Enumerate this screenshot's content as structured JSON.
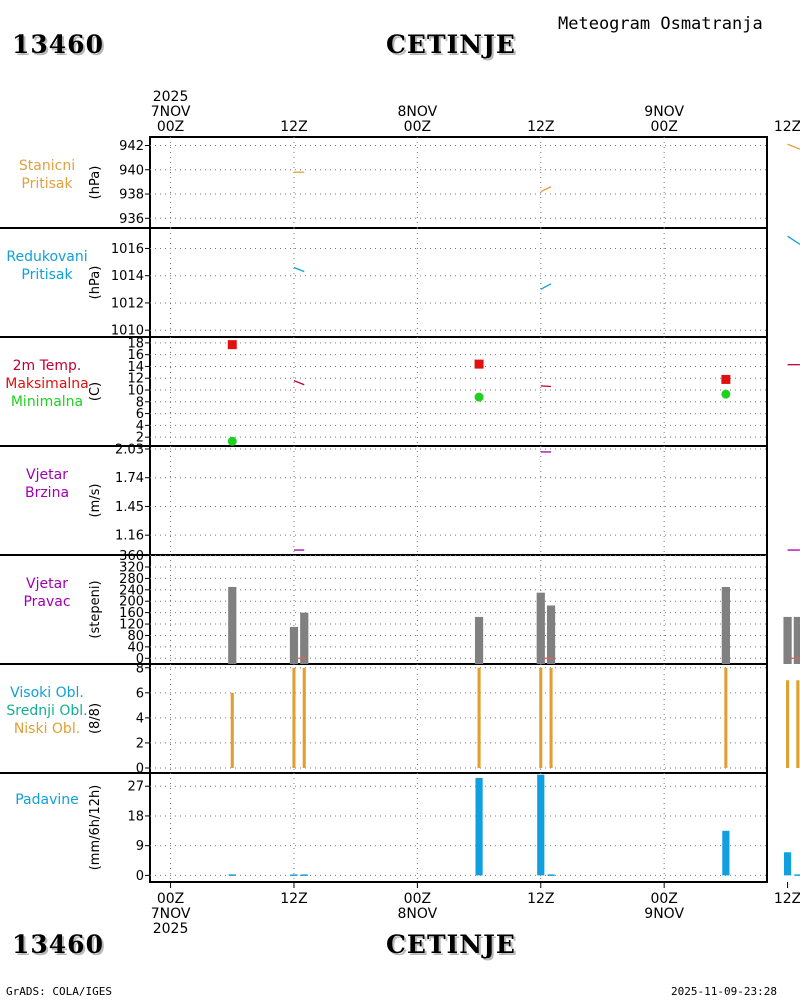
{
  "header": {
    "station_id": "13460",
    "station_name": "CETINJE",
    "product_title": "Meteogram Osmatranja"
  },
  "footer": {
    "station_id": "13460",
    "station_name": "CETINJE",
    "credit": "GrADS: COLA/IGES",
    "timestamp": "2025-11-09-23:28"
  },
  "colors": {
    "orange": "#e0a040",
    "cyan": "#10a0d8",
    "crimson": "#c00030",
    "red": "#e01010",
    "green": "#20d020",
    "purple": "#a000b0",
    "gray": "#808080",
    "cloud_bar": "#e0a030",
    "precip": "#10a0e0"
  },
  "chart_data": {
    "type": "meteogram",
    "time_axis": {
      "unit": "hours since 2025-11-07 00Z",
      "range": [
        -2,
        58
      ],
      "top_year": "2025",
      "top_ticks": [
        {
          "t": 0,
          "lines": [
            "2025",
            "7NOV",
            "00Z"
          ]
        },
        {
          "t": 12,
          "lines": [
            "12Z"
          ]
        },
        {
          "t": 24,
          "lines": [
            "8NOV",
            "00Z"
          ]
        },
        {
          "t": 36,
          "lines": [
            "12Z"
          ]
        },
        {
          "t": 48,
          "lines": [
            "9NOV",
            "00Z"
          ]
        },
        {
          "t": 60,
          "lines": [
            "12Z"
          ]
        }
      ],
      "bottom_ticks": [
        {
          "t": 0,
          "lines": [
            "00Z",
            "7NOV",
            "2025"
          ]
        },
        {
          "t": 12,
          "lines": [
            "12Z"
          ]
        },
        {
          "t": 24,
          "lines": [
            "00Z",
            "8NOV"
          ]
        },
        {
          "t": 36,
          "lines": [
            "12Z"
          ]
        },
        {
          "t": 48,
          "lines": [
            "00Z",
            "9NOV"
          ]
        },
        {
          "t": 60,
          "lines": [
            "12Z"
          ]
        }
      ]
    },
    "panels": [
      {
        "id": "station-pressure",
        "labels": [
          {
            "text": "Stanicni",
            "color": "#e0a040"
          },
          {
            "text": "Pritisak",
            "color": "#e0a040"
          }
        ],
        "unit": "(hPa)",
        "ylim": [
          935.2,
          942.7
        ],
        "yticks": [
          936,
          938,
          940,
          942
        ],
        "ytick_labels": [
          "936",
          "938",
          "940",
          "942"
        ],
        "series": [
          {
            "kind": "segments",
            "color": "#e0a040",
            "segments": [
              [
                [
                  12.0,
                  939.8
                ],
                [
                  13.0,
                  939.8
                ]
              ],
              [
                [
                  36.0,
                  938.2
                ],
                [
                  37.0,
                  938.6
                ]
              ],
              [
                [
                  60.0,
                  942.1
                ],
                [
                  61.2,
                  941.7
                ]
              ]
            ]
          }
        ]
      },
      {
        "id": "reduced-pressure",
        "labels": [
          {
            "text": "Redukovani",
            "color": "#10a0d8"
          },
          {
            "text": "Pritisak",
            "color": "#10a0d8"
          }
        ],
        "unit": "(hPa)",
        "ylim": [
          1009.5,
          1017.5
        ],
        "yticks": [
          1010,
          1012,
          1014,
          1016
        ],
        "ytick_labels": [
          "1010",
          "1012",
          "1014",
          "1016"
        ],
        "series": [
          {
            "kind": "segments",
            "color": "#10a0d8",
            "segments": [
              [
                [
                  12.0,
                  1014.6
                ],
                [
                  13.0,
                  1014.3
                ]
              ],
              [
                [
                  36.0,
                  1013.0
                ],
                [
                  37.0,
                  1013.4
                ]
              ],
              [
                [
                  60.0,
                  1016.9
                ],
                [
                  61.2,
                  1016.3
                ]
              ]
            ]
          }
        ]
      },
      {
        "id": "temperature",
        "labels": [
          {
            "text": "2m Temp.",
            "color": "#c00030"
          },
          {
            "text": "Maksimalna",
            "color": "#e01010"
          },
          {
            "text": "Minimalna",
            "color": "#20d020"
          }
        ],
        "unit": "(C)",
        "ylim": [
          0.5,
          19
        ],
        "yticks": [
          2,
          4,
          6,
          8,
          10,
          12,
          14,
          16,
          18
        ],
        "ytick_labels": [
          "2",
          "4",
          "6",
          "8",
          "10",
          "12",
          "14",
          "16",
          "18"
        ],
        "series": [
          {
            "kind": "segments",
            "color": "#c00030",
            "segments": [
              [
                [
                  12.0,
                  11.6
                ],
                [
                  13.0,
                  10.9
                ]
              ],
              [
                [
                  36.0,
                  10.7
                ],
                [
                  37.0,
                  10.6
                ]
              ],
              [
                [
                  60.0,
                  14.3
                ],
                [
                  61.2,
                  14.3
                ]
              ]
            ]
          },
          {
            "kind": "squares",
            "name": "Maksimalna",
            "color": "#e01010",
            "points": [
              [
                6,
                17.7
              ],
              [
                30,
                14.4
              ],
              [
                54,
                11.8
              ]
            ]
          },
          {
            "kind": "circles",
            "name": "Minimalna",
            "color": "#20d020",
            "points": [
              [
                6,
                1.3
              ],
              [
                30,
                8.8
              ],
              [
                54,
                9.3
              ]
            ]
          }
        ]
      },
      {
        "id": "wind-speed",
        "labels": [
          {
            "text": "Vjetar",
            "color": "#a000b0"
          },
          {
            "text": "Brzina",
            "color": "#a000b0"
          }
        ],
        "unit": "(m/s)",
        "ylim": [
          0.96,
          2.06
        ],
        "yticks": [
          1.16,
          1.45,
          1.74,
          2.03
        ],
        "ytick_labels": [
          "1.16",
          "1.45",
          "1.74",
          "2.03"
        ],
        "series": [
          {
            "kind": "segments",
            "color": "#a000b0",
            "segments": [
              [
                [
                  12.0,
                  1.01
                ],
                [
                  13.0,
                  1.01
                ]
              ],
              [
                [
                  36.0,
                  2.0
                ],
                [
                  37.0,
                  2.0
                ]
              ],
              [
                [
                  60.0,
                  1.01
                ],
                [
                  61.2,
                  1.01
                ]
              ]
            ]
          }
        ]
      },
      {
        "id": "wind-direction",
        "labels": [
          {
            "text": "Vjetar",
            "color": "#a000b0"
          },
          {
            "text": "Pravac",
            "color": "#a000b0"
          }
        ],
        "unit": "(stepeni)",
        "ylim": [
          -20,
          362
        ],
        "yticks": [
          0,
          40,
          80,
          120,
          160,
          200,
          240,
          280,
          320,
          360
        ],
        "ytick_labels": [
          "0",
          "40",
          "80",
          "120",
          "160",
          "200",
          "240",
          "280",
          "320",
          "360"
        ],
        "series": [
          {
            "kind": "bars",
            "color": "#808080",
            "width": 0.8,
            "base": -20,
            "points": [
              [
                6,
                250
              ],
              [
                12,
                110
              ],
              [
                13,
                160
              ],
              [
                30,
                145
              ],
              [
                36,
                230
              ],
              [
                37,
                185
              ],
              [
                54,
                250
              ],
              [
                60,
                145
              ],
              [
                61,
                145
              ]
            ]
          },
          {
            "kind": "segments",
            "color": "#e06060",
            "segments": [
              [
                [
                  12.3,
                  0
                ],
                [
                  13.2,
                  0
                ]
              ],
              [
                [
                  36.3,
                  0
                ],
                [
                  37.2,
                  0
                ]
              ],
              [
                [
                  60.3,
                  0
                ],
                [
                  61.2,
                  0
                ]
              ]
            ]
          }
        ]
      },
      {
        "id": "cloud-cover",
        "labels": [
          {
            "text": "Visoki Obl.",
            "color": "#10a0d8"
          },
          {
            "text": "Srednji Obl.",
            "color": "#10b090"
          },
          {
            "text": "Niski Obl.",
            "color": "#e0a030"
          }
        ],
        "unit": "(8/8)",
        "ylim": [
          -0.4,
          8.3
        ],
        "yticks": [
          0,
          2,
          4,
          6,
          8
        ],
        "ytick_labels": [
          "0",
          "2",
          "4",
          "6",
          "8"
        ],
        "series": [
          {
            "kind": "bars",
            "color": "#e0a030",
            "width": 0.3,
            "base": 0,
            "points": [
              [
                6,
                6
              ],
              [
                12,
                8
              ],
              [
                13,
                8
              ],
              [
                30,
                8
              ],
              [
                36,
                8
              ],
              [
                37,
                8
              ],
              [
                54,
                8
              ],
              [
                60,
                7
              ],
              [
                61,
                7
              ]
            ]
          }
        ]
      },
      {
        "id": "precipitation",
        "labels": [
          {
            "text": "Padavine",
            "color": "#10a0d8"
          }
        ],
        "unit": "(mm/6h/12h)",
        "ylim": [
          -2,
          31
        ],
        "yticks": [
          0,
          9,
          18,
          27
        ],
        "ytick_labels": [
          "0",
          "9",
          "18",
          "27"
        ],
        "series": [
          {
            "kind": "bars",
            "color": "#10a0e0",
            "width": 0.7,
            "base": 0,
            "points": [
              [
                6,
                0.3
              ],
              [
                12,
                0.3
              ],
              [
                13,
                0.3
              ],
              [
                30,
                29.5
              ],
              [
                36,
                30.5
              ],
              [
                37,
                0.3
              ],
              [
                54,
                13.5
              ],
              [
                60,
                7
              ],
              [
                61,
                0.3
              ]
            ]
          }
        ]
      }
    ]
  }
}
